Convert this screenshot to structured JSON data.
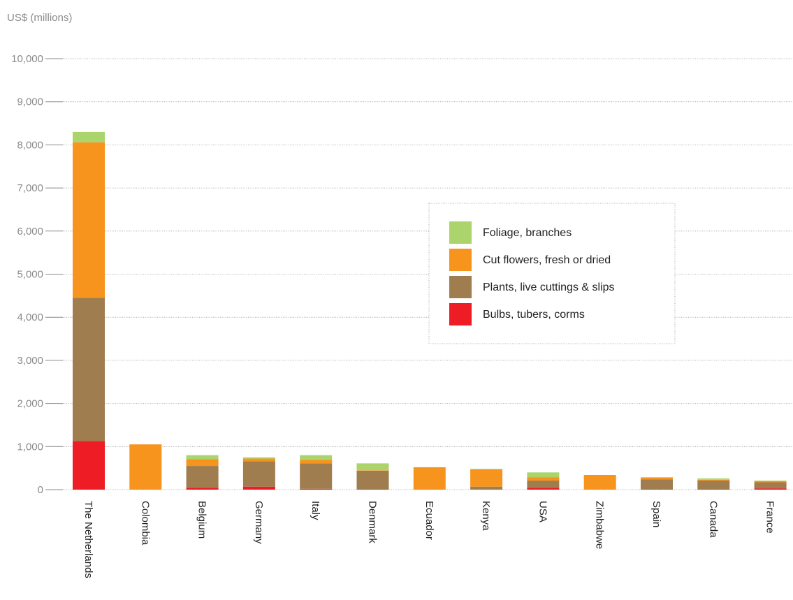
{
  "chart_data": {
    "type": "bar",
    "stacked": true,
    "ylabel": "US$ (millions)",
    "xlabel": "",
    "ylim": [
      0,
      10000
    ],
    "yticks": [
      0,
      1000,
      2000,
      3000,
      4000,
      5000,
      6000,
      7000,
      8000,
      9000,
      10000
    ],
    "ytick_labels": [
      "0",
      "1,000",
      "2,000",
      "3,000",
      "4,000",
      "5,000",
      "6,000",
      "7,000",
      "8,000",
      "9,000",
      "10,000"
    ],
    "grid": true,
    "legend_position": "right",
    "categories": [
      "The Netherlands",
      "Colombia",
      "Belgium",
      "Germany",
      "Italy",
      "Denmark",
      "Ecuador",
      "Kenya",
      "USA",
      "Zimbabwe",
      "Spain",
      "Canada",
      "France"
    ],
    "series": [
      {
        "name": "Bulbs, tubers, corms",
        "color": "#ee1c25",
        "values": [
          1130,
          0,
          40,
          70,
          20,
          10,
          0,
          0,
          40,
          0,
          10,
          10,
          30
        ]
      },
      {
        "name": "Plants, live cuttings & slips",
        "color": "#a07d4e",
        "values": [
          3320,
          0,
          510,
          590,
          590,
          430,
          0,
          70,
          170,
          0,
          230,
          200,
          140
        ]
      },
      {
        "name": "Cut flowers, fresh or dried",
        "color": "#f7941d",
        "values": [
          3610,
          1050,
          160,
          60,
          80,
          10,
          520,
          400,
          80,
          340,
          40,
          20,
          30
        ]
      },
      {
        "name": "Foliage, branches",
        "color": "#acd46c",
        "values": [
          240,
          0,
          90,
          30,
          110,
          160,
          0,
          10,
          110,
          0,
          10,
          30,
          10
        ]
      }
    ],
    "legend_order": [
      "Foliage, branches",
      "Cut flowers, fresh or dried",
      "Plants, live cuttings & slips",
      "Bulbs, tubers, corms"
    ]
  }
}
